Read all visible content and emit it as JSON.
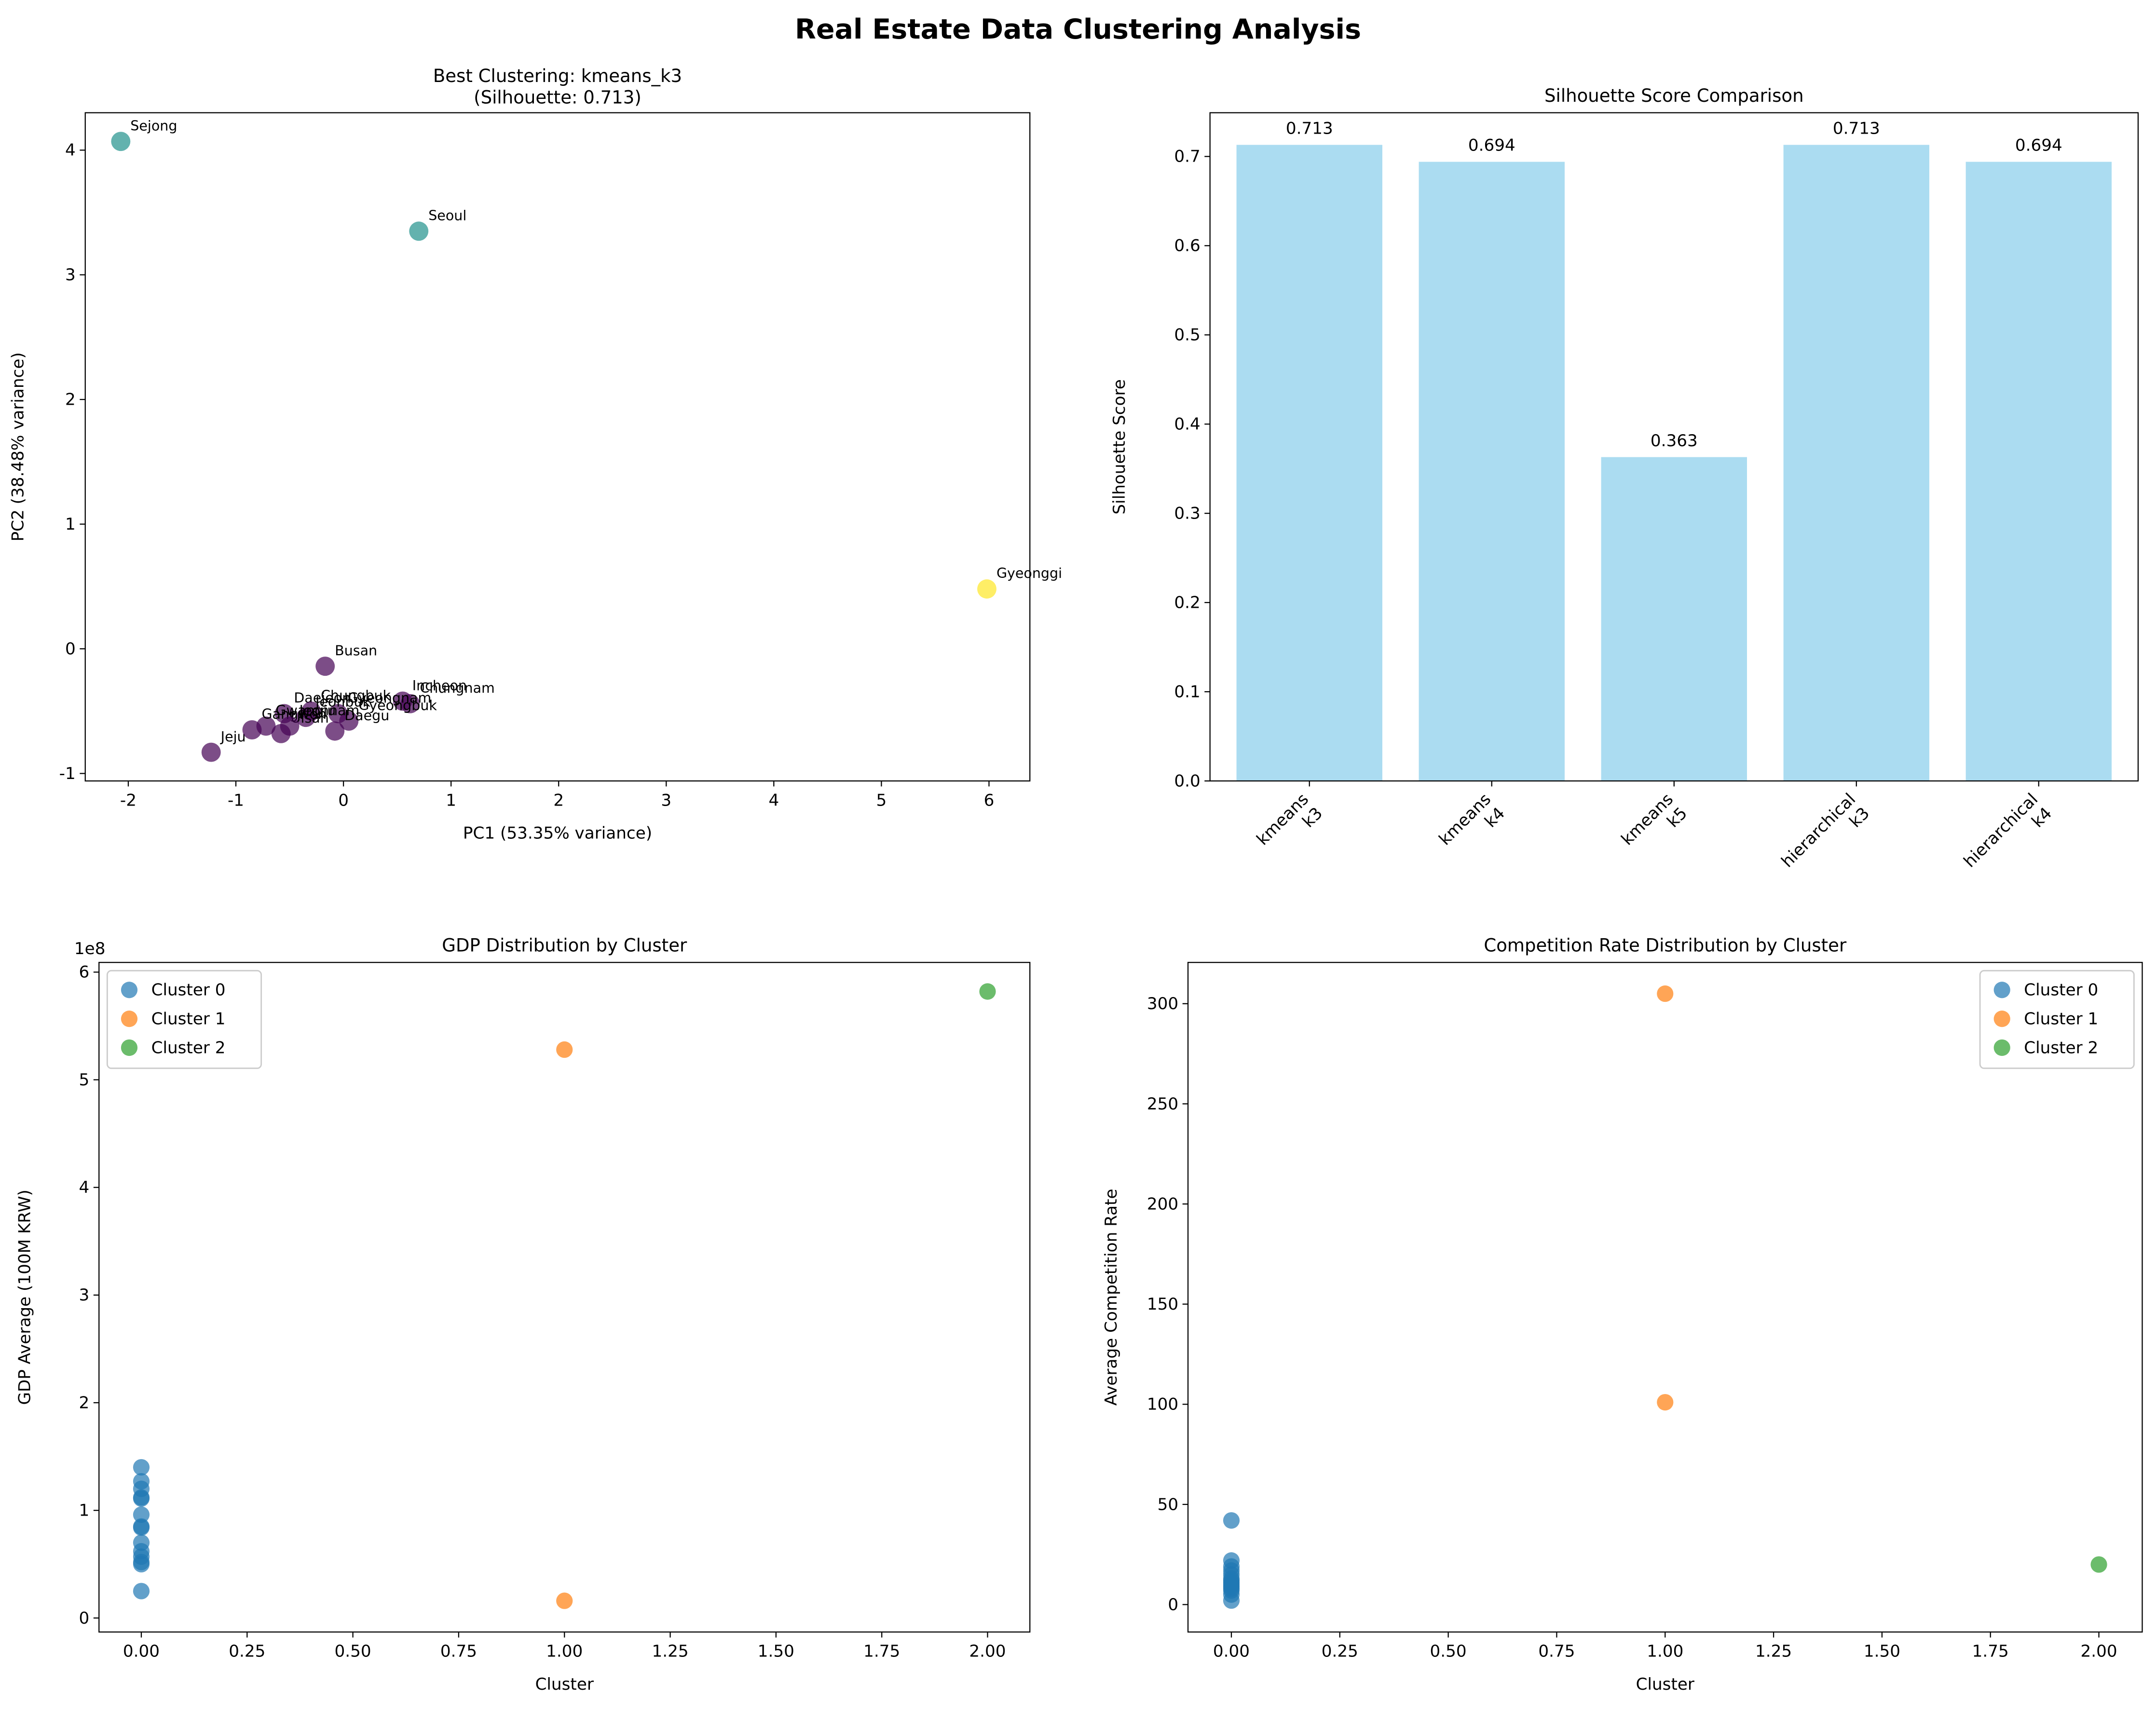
{
  "title": "Real Estate Data Clustering Analysis",
  "chart_data": [
    {
      "type": "scatter",
      "title": "Best Clustering: kmeans_k3\n(Silhouette: 0.713)",
      "x_label": "PC1 (53.35% variance)",
      "y_label": "PC2 (38.48% variance)",
      "labels": [
        "Sejong",
        "Seoul",
        "Gyeonggi",
        "Busan",
        "Jeju",
        "Incheon",
        "Chungnam",
        "Daejeon",
        "Chungbuk",
        "Gyeongnam",
        "Jeonbuk",
        "Gyeongbuk",
        "Daegu",
        "Gwangju",
        "Ulsan",
        "Gangwon",
        "Jeonnam"
      ],
      "x": [
        -2.07,
        0.7,
        5.98,
        -0.17,
        -1.23,
        0.55,
        0.62,
        -0.55,
        -0.3,
        -0.05,
        -0.35,
        0.05,
        -0.08,
        -0.72,
        -0.58,
        -0.85,
        -0.5
      ],
      "y": [
        4.07,
        3.35,
        0.48,
        -0.14,
        -0.83,
        -0.42,
        -0.44,
        -0.52,
        -0.5,
        -0.52,
        -0.55,
        -0.58,
        -0.66,
        -0.62,
        -0.68,
        -0.65,
        -0.62
      ],
      "colors": [
        "#21918c",
        "#21918c",
        "#fde725",
        "#440154",
        "#440154",
        "#440154",
        "#440154",
        "#440154",
        "#440154",
        "#440154",
        "#440154",
        "#440154",
        "#440154",
        "#440154",
        "#440154",
        "#440154",
        "#440154"
      ],
      "xlim": [
        -2.4,
        6.38
      ],
      "ylim": [
        -1.06,
        4.3
      ],
      "xticks": [
        -2,
        -1,
        0,
        1,
        2,
        3,
        4,
        5,
        6
      ],
      "yticks": [
        -1,
        0,
        1,
        2,
        3,
        4
      ]
    },
    {
      "type": "bar",
      "title": "Silhouette Score Comparison",
      "y_label": "Silhouette Score",
      "categories": [
        "kmeans\nk3",
        "kmeans\nk4",
        "kmeans\nk5",
        "hierarchical\nk3",
        "hierarchical\nk4"
      ],
      "values": [
        0.713,
        0.694,
        0.363,
        0.713,
        0.694
      ],
      "color": "#abdcf1",
      "ylim": [
        0,
        0.749
      ],
      "yticks": [
        {
          "value": 0,
          "label": "0.0"
        },
        {
          "value": 0.1,
          "label": "0.1"
        },
        {
          "value": 0.2,
          "label": "0.2"
        },
        {
          "value": 0.3,
          "label": "0.3"
        },
        {
          "value": 0.4,
          "label": "0.4"
        },
        {
          "value": 0.5,
          "label": "0.5"
        },
        {
          "value": 0.6,
          "label": "0.6"
        },
        {
          "value": 0.7,
          "label": "0.7"
        }
      ]
    },
    {
      "type": "scatter",
      "title": "GDP Distribution by Cluster",
      "x_label": "Cluster",
      "y_label": "GDP Average (100M KRW)",
      "y_offset_label": "1e8",
      "legend": "upper left",
      "series": [
        {
          "name": "Cluster 0",
          "color": "#1f77b4",
          "x": [
            0,
            0,
            0,
            0,
            0,
            0,
            0,
            0,
            0,
            0,
            0,
            0,
            0,
            0
          ],
          "values": [
            1.4,
            1.27,
            1.2,
            1.12,
            1.11,
            0.96,
            0.85,
            0.84,
            0.7,
            0.62,
            0.57,
            0.52,
            0.5,
            0.25
          ]
        },
        {
          "name": "Cluster 1",
          "color": "#ff7f0e",
          "x": [
            1,
            1
          ],
          "values": [
            5.28,
            0.16
          ]
        },
        {
          "name": "Cluster 2",
          "color": "#2ca02c",
          "x": [
            2
          ],
          "values": [
            5.82
          ]
        }
      ],
      "xlim": [
        -0.1,
        2.1
      ],
      "ylim": [
        -0.13,
        6.09
      ],
      "xticks": [
        {
          "value": 0,
          "label": "0.00"
        },
        {
          "value": 0.25,
          "label": "0.25"
        },
        {
          "value": 0.5,
          "label": "0.50"
        },
        {
          "value": 0.75,
          "label": "0.75"
        },
        {
          "value": 1,
          "label": "1.00"
        },
        {
          "value": 1.25,
          "label": "1.25"
        },
        {
          "value": 1.5,
          "label": "1.50"
        },
        {
          "value": 1.75,
          "label": "1.75"
        },
        {
          "value": 2,
          "label": "2.00"
        }
      ],
      "yticks": [
        0,
        1,
        2,
        3,
        4,
        5,
        6
      ]
    },
    {
      "type": "scatter",
      "title": "Competition Rate Distribution by Cluster",
      "x_label": "Cluster",
      "y_label": "Average Competition Rate",
      "legend": "upper right",
      "series": [
        {
          "name": "Cluster 0",
          "color": "#1f77b4",
          "x": [
            0,
            0,
            0,
            0,
            0,
            0,
            0,
            0,
            0,
            0,
            0,
            0,
            0,
            0
          ],
          "values": [
            42,
            22,
            19,
            17,
            15,
            13,
            12,
            11,
            10,
            9,
            8,
            7,
            5,
            2
          ]
        },
        {
          "name": "Cluster 1",
          "color": "#ff7f0e",
          "x": [
            1,
            1
          ],
          "values": [
            305,
            101
          ]
        },
        {
          "name": "Cluster 2",
          "color": "#2ca02c",
          "x": [
            2
          ],
          "values": [
            20
          ]
        }
      ],
      "xlim": [
        -0.1,
        2.1
      ],
      "ylim": [
        -13.7,
        320.6
      ],
      "xticks": [
        {
          "value": 0,
          "label": "0.00"
        },
        {
          "value": 0.25,
          "label": "0.25"
        },
        {
          "value": 0.5,
          "label": "0.50"
        },
        {
          "value": 0.75,
          "label": "0.75"
        },
        {
          "value": 1,
          "label": "1.00"
        },
        {
          "value": 1.25,
          "label": "1.25"
        },
        {
          "value": 1.5,
          "label": "1.50"
        },
        {
          "value": 1.75,
          "label": "1.75"
        },
        {
          "value": 2,
          "label": "2.00"
        }
      ],
      "yticks": [
        0,
        50,
        100,
        150,
        200,
        250,
        300
      ]
    }
  ]
}
